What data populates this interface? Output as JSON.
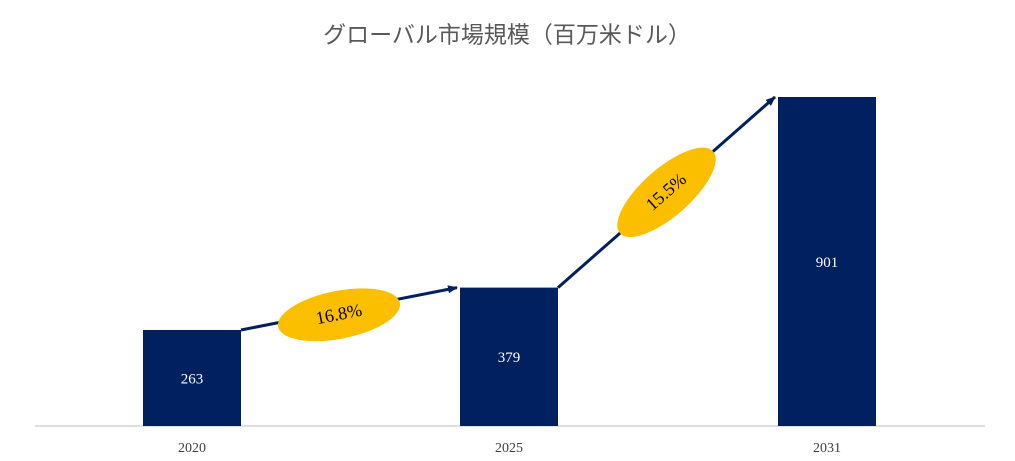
{
  "chart_data": {
    "type": "bar",
    "title": "グローバル市場規模（百万米ドル）",
    "categories": [
      "2020",
      "2025",
      "2031"
    ],
    "values": [
      263,
      379,
      901
    ],
    "color": "#002060",
    "annotations": [
      "16.8%",
      "15.5%"
    ],
    "annotation_color": "#fbbf00",
    "arrow_color": "#002060"
  }
}
